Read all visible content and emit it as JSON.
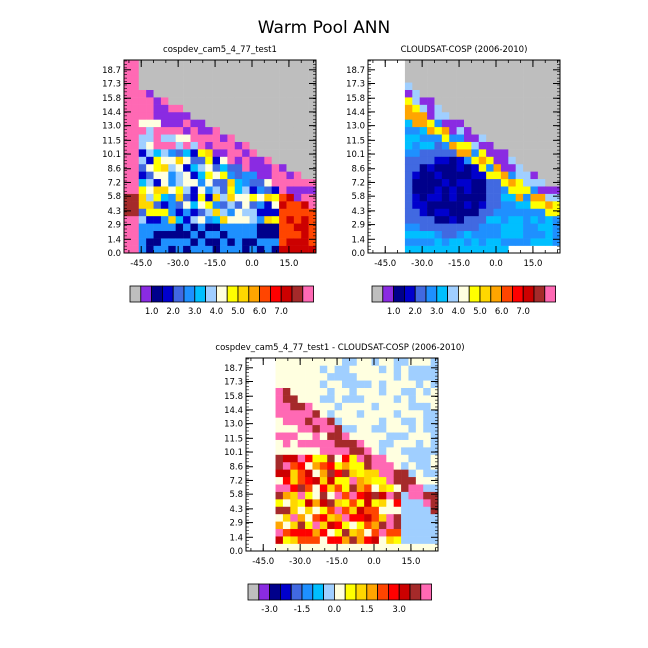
{
  "page_title": "Warm Pool ANN",
  "colors": {
    "background": "#ffffff",
    "missing": "#bebebe",
    "frame": "#000000"
  },
  "chart_data": [
    {
      "type": "heatmap",
      "title": "cospdev_cam5_4_77_test1",
      "x_ticks": [
        "-45.0",
        "-30.0",
        "-15.0",
        "0.0",
        "15.0"
      ],
      "y_ticks": [
        "0.0",
        "1.4",
        "2.9",
        "4.3",
        "5.8",
        "7.2",
        "8.6",
        "10.1",
        "11.5",
        "13.0",
        "14.4",
        "15.8",
        "17.3",
        "18.7"
      ],
      "colorbar": {
        "labels": [
          "1.0",
          "2.0",
          "3.0",
          "4.0",
          "5.0",
          "6.0",
          "7.0"
        ],
        "colors": [
          "#bebebe",
          "#8a2be2",
          "#00008b",
          "#0000cd",
          "#4169e1",
          "#1e90ff",
          "#00bfff",
          "#a0cfff",
          "#ffffe0",
          "#ffff00",
          "#ffd700",
          "#ffa500",
          "#ff4500",
          "#ff0000",
          "#cc0000",
          "#a52a2a",
          "#ff69b4"
        ]
      }
    },
    {
      "type": "heatmap",
      "title": "CLOUDSAT-COSP (2006-2010)",
      "x_ticks": [
        "-45.0",
        "-30.0",
        "-15.0",
        "0.0",
        "15.0"
      ],
      "y_ticks": [
        "0.0",
        "1.4",
        "2.9",
        "4.3",
        "5.8",
        "7.2",
        "8.6",
        "10.1",
        "11.5",
        "13.0",
        "14.4",
        "15.8",
        "17.3",
        "18.7"
      ],
      "colorbar": {
        "labels": [
          "1.0",
          "2.0",
          "3.0",
          "4.0",
          "5.0",
          "6.0",
          "7.0"
        ],
        "colors": [
          "#bebebe",
          "#8a2be2",
          "#00008b",
          "#0000cd",
          "#4169e1",
          "#1e90ff",
          "#00bfff",
          "#a0cfff",
          "#ffffe0",
          "#ffff00",
          "#ffd700",
          "#ffa500",
          "#ff4500",
          "#ff0000",
          "#cc0000",
          "#a52a2a",
          "#ff69b4"
        ]
      }
    },
    {
      "type": "heatmap",
      "title": "cospdev_cam5_4_77_test1 - CLOUDSAT-COSP (2006-2010)",
      "x_ticks": [
        "-45.0",
        "-30.0",
        "-15.0",
        "0.0",
        "15.0"
      ],
      "y_ticks": [
        "0.0",
        "1.4",
        "2.9",
        "4.3",
        "5.8",
        "7.2",
        "8.6",
        "10.1",
        "11.5",
        "13.0",
        "14.4",
        "15.8",
        "17.3",
        "18.7"
      ],
      "colorbar": {
        "labels": [
          "-3.0",
          "-1.5",
          "0.0",
          "1.5",
          "3.0"
        ],
        "colors": [
          "#bebebe",
          "#8a2be2",
          "#00008b",
          "#0000cd",
          "#4169e1",
          "#1e90ff",
          "#00bfff",
          "#a0cfff",
          "#ffffe0",
          "#ffff00",
          "#ffd700",
          "#ffa500",
          "#ff4500",
          "#ff0000",
          "#cc0000",
          "#a52a2a",
          "#ff69b4"
        ]
      }
    }
  ]
}
